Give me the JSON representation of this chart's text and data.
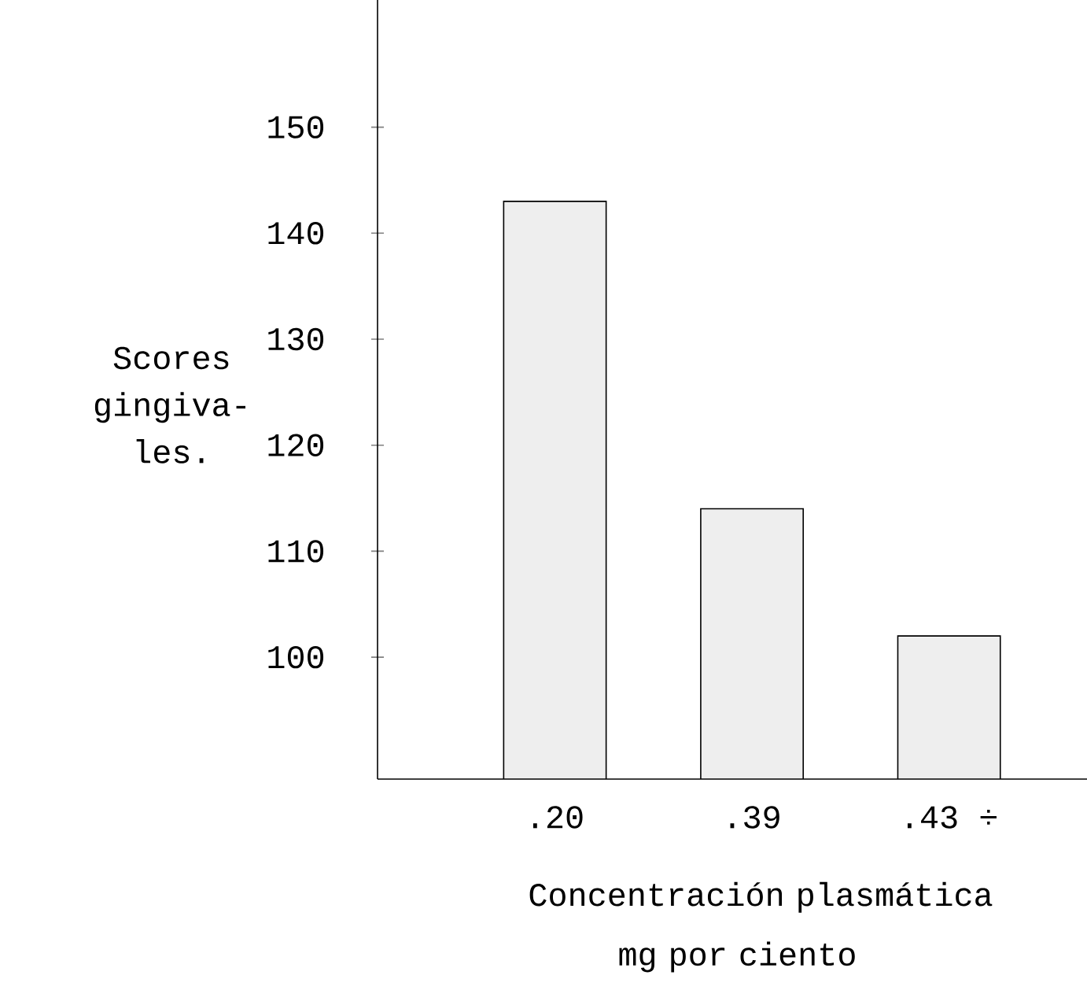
{
  "chart_data": {
    "type": "bar",
    "xlabel": "Concentración plasmática mg por ciento",
    "ylabel": "Scores gingiva-les.",
    "categories": [
      ".20",
      ".39",
      ".43 ÷"
    ],
    "values": [
      143,
      114,
      102
    ],
    "color": "#eeeeee",
    "ylim": [
      88.5,
      162
    ],
    "yticks": [
      100,
      110,
      120,
      130,
      140,
      150
    ],
    "grid": false
  }
}
